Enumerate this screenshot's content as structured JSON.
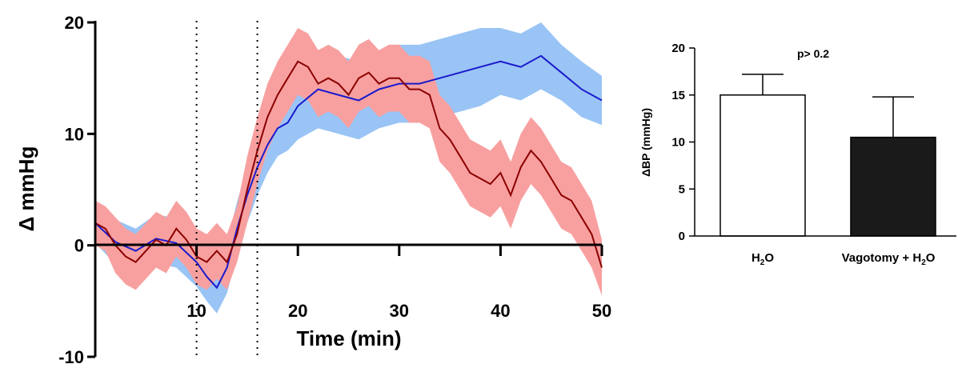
{
  "chart_data": [
    {
      "type": "line",
      "ylabel": "Δ mmHg",
      "xlabel": "Time (min)",
      "xlim": [
        0,
        50
      ],
      "ylim": [
        -10,
        20
      ],
      "x_ticks": [
        "10",
        "20",
        "30",
        "40",
        "50"
      ],
      "y_ticks": [
        "-10",
        "0",
        "10",
        "20"
      ],
      "reference_lines_x": [
        10,
        16
      ],
      "colors": {
        "blue_line": "#1a1acc",
        "blue_band": "#99c4f5",
        "red_line": "#8b0000",
        "red_band": "#f8a0a0"
      },
      "series": [
        {
          "color": "#1a1acc",
          "band": "#99c4f5",
          "points": [
            [
              0,
              2.0,
              1.8
            ],
            [
              2,
              0.3,
              2.0
            ],
            [
              4,
              -0.5,
              2.0
            ],
            [
              6,
              0.6,
              2.2
            ],
            [
              8,
              0.2,
              2.2
            ],
            [
              10,
              -1.5,
              2.2
            ],
            [
              11,
              -2.8,
              2.2
            ],
            [
              12,
              -3.8,
              2.3
            ],
            [
              13,
              -2.0,
              2.3
            ],
            [
              14,
              1.5,
              2.4
            ],
            [
              15,
              4.5,
              2.5
            ],
            [
              16,
              7.0,
              2.5
            ],
            [
              17,
              9.0,
              2.5
            ],
            [
              18,
              10.5,
              2.5
            ],
            [
              19,
              11.0,
              2.5
            ],
            [
              20,
              12.5,
              3.0
            ],
            [
              22,
              14.0,
              3.5
            ],
            [
              24,
              13.5,
              3.5
            ],
            [
              26,
              13.0,
              3.5
            ],
            [
              28,
              14.0,
              3.5
            ],
            [
              30,
              14.5,
              3.5
            ],
            [
              32,
              14.5,
              3.5
            ],
            [
              34,
              15.0,
              3.5
            ],
            [
              36,
              15.5,
              3.5
            ],
            [
              38,
              16.0,
              3.5
            ],
            [
              40,
              16.5,
              3.0
            ],
            [
              42,
              16.0,
              3.0
            ],
            [
              44,
              17.0,
              3.0
            ],
            [
              46,
              15.5,
              2.5
            ],
            [
              48,
              14.0,
              2.5
            ],
            [
              50,
              13.0,
              2.2
            ]
          ]
        },
        {
          "color": "#8b0000",
          "band": "#f8a0a0",
          "points": [
            [
              0,
              2.0,
              2.0
            ],
            [
              1,
              1.5,
              2.0
            ],
            [
              2,
              0.0,
              2.5
            ],
            [
              3,
              -1.0,
              2.5
            ],
            [
              4,
              -1.5,
              2.5
            ],
            [
              5,
              -0.5,
              2.5
            ],
            [
              6,
              0.5,
              2.5
            ],
            [
              7,
              0.0,
              2.5
            ],
            [
              8,
              1.5,
              2.5
            ],
            [
              9,
              0.5,
              2.5
            ],
            [
              10,
              -1.0,
              2.5
            ],
            [
              11,
              -1.5,
              2.5
            ],
            [
              12,
              -0.5,
              2.5
            ],
            [
              13,
              -1.5,
              2.5
            ],
            [
              14,
              1.0,
              2.5
            ],
            [
              15,
              5.0,
              3.0
            ],
            [
              16,
              8.5,
              3.0
            ],
            [
              17,
              11.5,
              3.0
            ],
            [
              18,
              13.5,
              3.0
            ],
            [
              19,
              15.0,
              3.0
            ],
            [
              20,
              16.5,
              3.0
            ],
            [
              21,
              16.0,
              3.0
            ],
            [
              22,
              14.5,
              3.0
            ],
            [
              23,
              15.0,
              3.0
            ],
            [
              24,
              14.5,
              3.0
            ],
            [
              25,
              13.5,
              3.0
            ],
            [
              26,
              15.0,
              3.0
            ],
            [
              27,
              15.5,
              3.0
            ],
            [
              28,
              14.5,
              3.0
            ],
            [
              29,
              15.0,
              3.0
            ],
            [
              30,
              15.0,
              3.0
            ],
            [
              31,
              14.0,
              3.0
            ],
            [
              32,
              14.0,
              3.0
            ],
            [
              33,
              13.5,
              3.0
            ],
            [
              34,
              10.5,
              3.0
            ],
            [
              35,
              9.5,
              3.0
            ],
            [
              36,
              8.0,
              3.0
            ],
            [
              37,
              6.5,
              3.0
            ],
            [
              38,
              6.0,
              3.0
            ],
            [
              39,
              5.5,
              3.0
            ],
            [
              40,
              6.5,
              3.0
            ],
            [
              41,
              4.5,
              3.0
            ],
            [
              42,
              7.0,
              3.0
            ],
            [
              43,
              8.5,
              3.0
            ],
            [
              44,
              7.5,
              3.0
            ],
            [
              45,
              6.0,
              3.0
            ],
            [
              46,
              4.5,
              3.0
            ],
            [
              47,
              4.0,
              3.0
            ],
            [
              48,
              2.5,
              3.0
            ],
            [
              49,
              1.0,
              3.0
            ],
            [
              50,
              -2.0,
              2.5
            ]
          ]
        }
      ]
    },
    {
      "type": "bar",
      "ylabel": "ΔBP (mmHg)",
      "ylim": [
        0,
        20
      ],
      "y_ticks": [
        "0",
        "5",
        "10",
        "15",
        "20"
      ],
      "annotation": "p> 0.2",
      "bars": [
        {
          "label_main": "H",
          "label_sub": "2",
          "label_tail": "O",
          "value": 15.0,
          "error": 2.2,
          "fill": "#ffffff"
        },
        {
          "label_main": "Vagotomy + H",
          "label_sub": "2",
          "label_tail": "O",
          "value": 10.5,
          "error": 4.3,
          "fill": "#1a1a1a"
        }
      ]
    }
  ]
}
